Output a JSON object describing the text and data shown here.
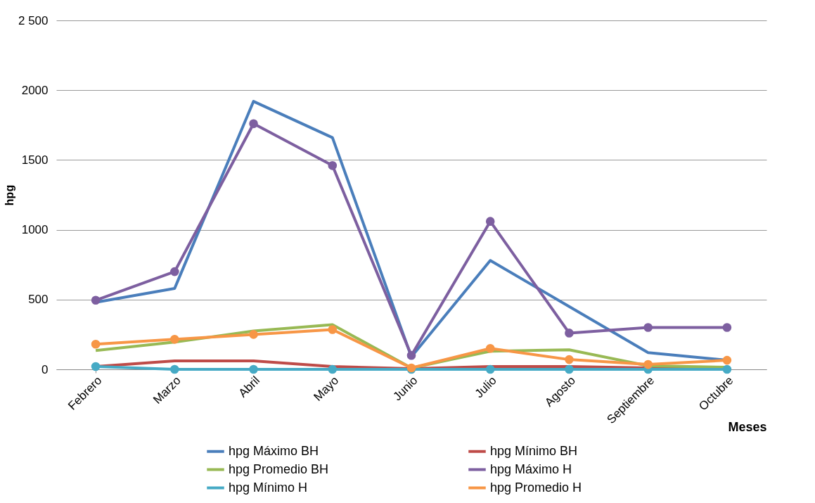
{
  "chart_data": {
    "type": "line",
    "xlabel": "Meses",
    "ylabel": "hpg",
    "categories": [
      "Febrero",
      "Marzo",
      "Abril",
      "Mayo",
      "Junio",
      "Julio",
      "Agosto",
      "Septiembre",
      "Octubre"
    ],
    "series": [
      {
        "name": "hpg Máximo BH",
        "color": "#4a7ebb",
        "marker": "none",
        "values": [
          480,
          580,
          1920,
          1660,
          90,
          780,
          450,
          120,
          65
        ]
      },
      {
        "name": "hpg Mínimo BH",
        "color": "#be4b48",
        "marker": "none",
        "values": [
          20,
          60,
          60,
          20,
          5,
          20,
          20,
          10,
          10
        ]
      },
      {
        "name": "hpg Promedio BH",
        "color": "#98b954",
        "marker": "none",
        "values": [
          135,
          195,
          275,
          320,
          10,
          130,
          140,
          25,
          15
        ]
      },
      {
        "name": "hpg Máximo H",
        "color": "#7d5fa0",
        "marker": "circle",
        "values": [
          495,
          700,
          1760,
          1460,
          100,
          1060,
          260,
          300,
          300
        ]
      },
      {
        "name": "hpg Mínimo H",
        "color": "#46aac5",
        "marker": "circle",
        "values": [
          20,
          0,
          0,
          0,
          0,
          0,
          0,
          0,
          0
        ]
      },
      {
        "name": "hpg Promedio H",
        "color": "#f79646",
        "marker": "circle",
        "values": [
          180,
          215,
          250,
          285,
          10,
          150,
          70,
          35,
          65
        ]
      }
    ],
    "ylim": [
      0,
      2500
    ],
    "yticks": [
      0,
      500,
      1000,
      1500,
      2000,
      {
        "value": 2500,
        "label": "2 500"
      }
    ],
    "grid": "y",
    "legend": "bottom"
  }
}
